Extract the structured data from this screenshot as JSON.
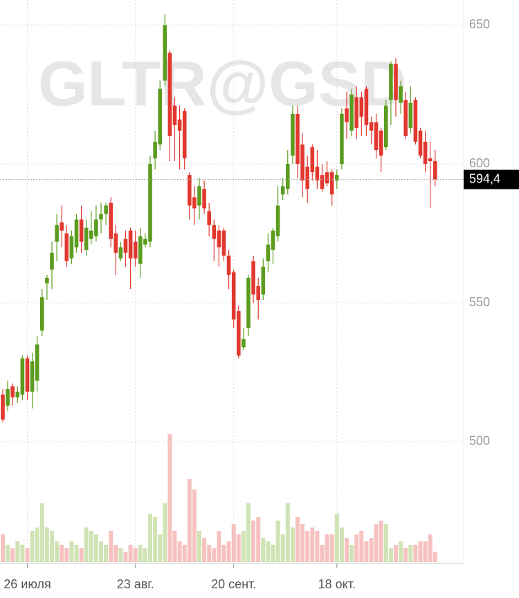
{
  "chart_data": {
    "type": "candlestick",
    "watermark": "GLTR@GSD",
    "open": [
      517,
      513,
      520,
      516,
      517,
      530,
      518,
      522,
      540,
      557,
      562,
      572,
      579,
      575,
      566,
      570,
      580,
      569,
      573,
      574,
      580,
      582,
      586,
      575,
      566,
      573,
      576,
      572,
      564,
      571,
      572,
      602,
      607,
      630,
      640,
      621,
      616,
      619,
      596,
      588,
      585,
      591,
      583,
      578,
      576,
      576,
      567,
      561,
      547,
      534,
      541,
      565,
      556,
      553,
      565,
      569,
      574,
      589,
      591,
      603,
      618,
      607,
      599,
      606,
      599,
      596,
      597,
      597,
      594,
      600,
      620,
      612,
      624,
      624,
      627,
      615,
      615,
      612,
      606,
      623,
      636,
      622,
      623,
      613,
      623,
      612,
      608,
      602,
      601
    ],
    "high": [
      519,
      522,
      521,
      520,
      531,
      531,
      532,
      538,
      555,
      560,
      572,
      582,
      585,
      578,
      576,
      582,
      585,
      580,
      583,
      585,
      586,
      586,
      588,
      578,
      572,
      576,
      577,
      576,
      577,
      575,
      603,
      612,
      630,
      654,
      641,
      624,
      621,
      620,
      597,
      592,
      595,
      594,
      586,
      580,
      578,
      577,
      569,
      562,
      549,
      541,
      560,
      567,
      559,
      566,
      575,
      577,
      592,
      595,
      605,
      621,
      621,
      611,
      603,
      607,
      605,
      600,
      601,
      598,
      598,
      620,
      626,
      627,
      628,
      626,
      628,
      617,
      618,
      613,
      623,
      637,
      638,
      630,
      626,
      628,
      624,
      613,
      612,
      608,
      605
    ],
    "low": [
      507,
      511,
      513,
      514,
      515,
      515,
      512,
      518,
      538,
      551,
      555,
      565,
      570,
      563,
      564,
      568,
      568,
      567,
      571,
      572,
      575,
      578,
      570,
      560,
      565,
      563,
      555,
      563,
      559,
      570,
      570,
      598,
      605,
      628,
      601,
      601,
      598,
      598,
      580,
      578,
      580,
      582,
      574,
      565,
      563,
      565,
      555,
      541,
      530,
      533,
      538,
      550,
      544,
      551,
      561,
      564,
      572,
      587,
      589,
      600,
      595,
      588,
      586,
      594,
      591,
      590,
      592,
      585,
      591,
      598,
      609,
      610,
      609,
      610,
      610,
      607,
      602,
      597,
      605,
      614,
      617,
      618,
      609,
      611,
      607,
      602,
      597,
      584,
      592
    ],
    "close": [
      508,
      519,
      516,
      518,
      530,
      518,
      529,
      535,
      552,
      559,
      568,
      578,
      576,
      565,
      574,
      580,
      572,
      577,
      576,
      580,
      582,
      585,
      573,
      568,
      570,
      568,
      566,
      566,
      574,
      573,
      600,
      608,
      627,
      650,
      610,
      614,
      612,
      602,
      585,
      584,
      592,
      584,
      578,
      573,
      570,
      567,
      560,
      544,
      531,
      537,
      559,
      553,
      551,
      563,
      571,
      576,
      585,
      592,
      600,
      618,
      600,
      594,
      591,
      597,
      594,
      591,
      593,
      589,
      596,
      618,
      615,
      625,
      613,
      617,
      614,
      612,
      605,
      603,
      621,
      636,
      623,
      628,
      610,
      622,
      608,
      603,
      600,
      601,
      594.4
    ],
    "volume": [
      40,
      25,
      20,
      30,
      25,
      20,
      45,
      50,
      85,
      50,
      45,
      30,
      25,
      20,
      30,
      25,
      20,
      50,
      45,
      40,
      30,
      25,
      45,
      25,
      20,
      15,
      25,
      20,
      25,
      20,
      70,
      65,
      40,
      85,
      185,
      45,
      30,
      25,
      120,
      105,
      45,
      35,
      25,
      20,
      45,
      25,
      30,
      55,
      40,
      45,
      85,
      60,
      65,
      35,
      30,
      25,
      60,
      40,
      85,
      50,
      65,
      55,
      45,
      50,
      45,
      25,
      40,
      40,
      70,
      50,
      35,
      25,
      40,
      45,
      30,
      35,
      55,
      60,
      55,
      20,
      25,
      30,
      20,
      25,
      25,
      30,
      30,
      40,
      15
    ],
    "up_color": "#5b9c1f",
    "down_color": "#e2382f",
    "up_volume_color": "#cfe3b4",
    "down_volume_color": "#f6c2c0",
    "last_price_label": "594,4",
    "ylim": [
      456.7,
      659
    ],
    "yticks": [
      500,
      550,
      600,
      650
    ],
    "xticks": [
      {
        "value": 5,
        "label": "26 июля"
      },
      {
        "value": 27,
        "label": "23 авг."
      },
      {
        "value": 47,
        "label": "20 сент."
      },
      {
        "value": 68,
        "label": "18 окт."
      }
    ],
    "grid": true
  }
}
